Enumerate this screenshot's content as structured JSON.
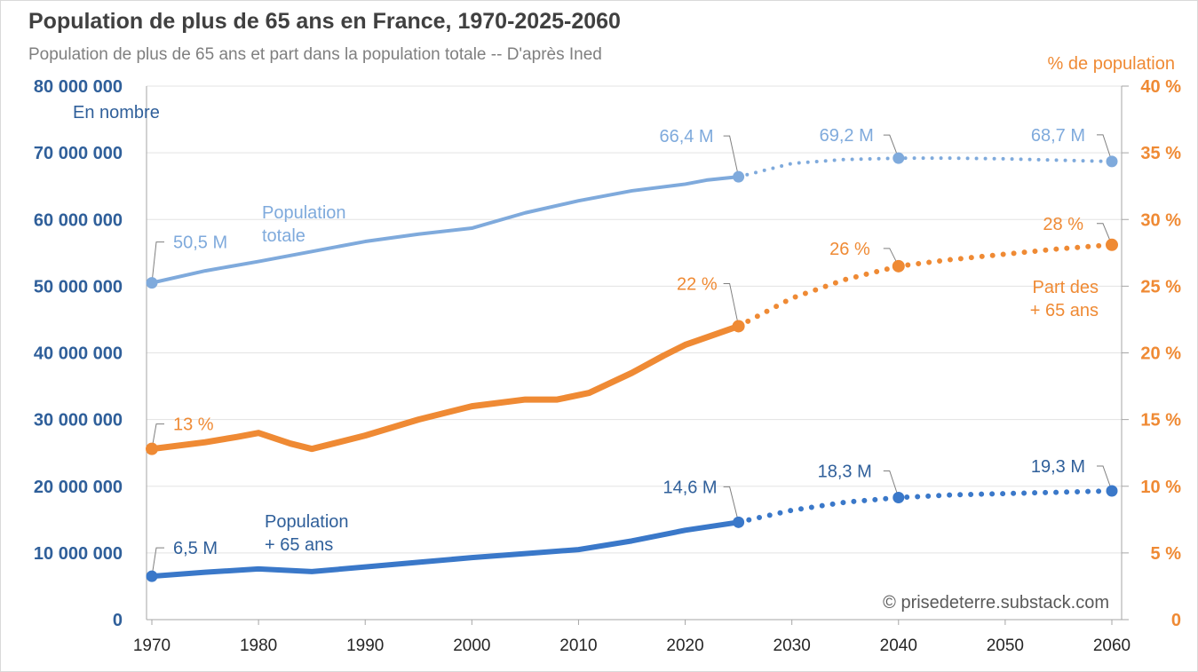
{
  "chart_data": {
    "type": "line",
    "title": "Population de plus de 65 ans en France, 1970-2025-2060",
    "subtitle": "Population de plus de 65 ans et part dans la population totale -- D'après Ined",
    "ylabel_left": "En nombre",
    "ylabel_right": "% de population",
    "credit": "© prisedeterre.substack.com",
    "xlim": [
      1970,
      2060
    ],
    "ylim_left": [
      0,
      80000000
    ],
    "ylim_right": [
      0,
      40
    ],
    "x_ticks": [
      "1970",
      "1980",
      "1990",
      "2000",
      "2010",
      "2020",
      "2030",
      "2040",
      "2050",
      "2060"
    ],
    "y_ticks_left": [
      "0",
      "10 000 000",
      "20 000 000",
      "30 000 000",
      "40 000 000",
      "50 000 000",
      "60 000 000",
      "70 000 000",
      "80 000 000"
    ],
    "y_ticks_right": [
      "0",
      "5 %",
      "10 %",
      "15 %",
      "20 %",
      "25 %",
      "30 %",
      "35 %",
      "40 %"
    ],
    "grid": true,
    "series": [
      {
        "name": "Population totale",
        "label_lines": [
          "Population",
          "totale"
        ],
        "axis": "left",
        "unit": "millions",
        "color": "#7faadc",
        "observed": {
          "x": [
            1970,
            1975,
            1980,
            1985,
            1990,
            1995,
            2000,
            2005,
            2010,
            2015,
            2020,
            2022,
            2025
          ],
          "y": [
            50.5,
            52.3,
            53.7,
            55.2,
            56.7,
            57.8,
            58.7,
            61.0,
            62.8,
            64.3,
            65.3,
            65.9,
            66.4
          ]
        },
        "projected": {
          "x": [
            2025,
            2030,
            2035,
            2040,
            2045,
            2050,
            2055,
            2060
          ],
          "y": [
            66.4,
            68.4,
            69.0,
            69.2,
            69.2,
            69.1,
            68.9,
            68.7
          ]
        },
        "annotations": [
          {
            "x": 1970,
            "y": 50.5,
            "text": "50,5 M"
          },
          {
            "x": 2025,
            "y": 66.4,
            "text": "66,4 M"
          },
          {
            "x": 2040,
            "y": 69.2,
            "text": "69,2 M"
          },
          {
            "x": 2060,
            "y": 68.7,
            "text": "68,7 M"
          }
        ]
      },
      {
        "name": "Part des + 65 ans",
        "label_lines": [
          "Part des",
          "+ 65 ans"
        ],
        "axis": "right",
        "unit": "percent",
        "color": "#ef8a34",
        "observed": {
          "x": [
            1970,
            1975,
            1978,
            1980,
            1983,
            1985,
            1990,
            1995,
            2000,
            2005,
            2008,
            2011,
            2015,
            2018,
            2020,
            2025
          ],
          "y": [
            12.8,
            13.3,
            13.7,
            14.0,
            13.2,
            12.8,
            13.8,
            15.0,
            16.0,
            16.5,
            16.5,
            17.0,
            18.5,
            19.8,
            20.6,
            22.0
          ]
        },
        "projected": {
          "x": [
            2025,
            2030,
            2035,
            2040,
            2045,
            2050,
            2055,
            2060
          ],
          "y": [
            22.0,
            24.1,
            25.5,
            26.5,
            27.0,
            27.4,
            27.8,
            28.1
          ]
        },
        "annotations": [
          {
            "x": 1970,
            "y": 12.8,
            "text": "13 %"
          },
          {
            "x": 2025,
            "y": 22.0,
            "text": "22 %"
          },
          {
            "x": 2040,
            "y": 26.5,
            "text": "26 %"
          },
          {
            "x": 2060,
            "y": 28.1,
            "text": "28 %"
          }
        ]
      },
      {
        "name": "Population + 65 ans",
        "label_lines": [
          "Population",
          "+ 65 ans"
        ],
        "axis": "left",
        "unit": "millions",
        "color": "#3a78c9",
        "observed": {
          "x": [
            1970,
            1975,
            1980,
            1985,
            1990,
            1995,
            2000,
            2005,
            2010,
            2015,
            2020,
            2025
          ],
          "y": [
            6.5,
            7.1,
            7.6,
            7.2,
            7.9,
            8.6,
            9.3,
            9.9,
            10.5,
            11.8,
            13.4,
            14.6
          ]
        },
        "projected": {
          "x": [
            2025,
            2030,
            2035,
            2040,
            2045,
            2050,
            2055,
            2060
          ],
          "y": [
            14.6,
            16.4,
            17.6,
            18.3,
            18.7,
            18.9,
            19.1,
            19.3
          ]
        },
        "annotations": [
          {
            "x": 1970,
            "y": 6.5,
            "text": "6,5 M"
          },
          {
            "x": 2025,
            "y": 14.6,
            "text": "14,6 M"
          },
          {
            "x": 2040,
            "y": 18.3,
            "text": "18,3 M"
          },
          {
            "x": 2060,
            "y": 19.3,
            "text": "19,3 M"
          }
        ]
      }
    ]
  }
}
